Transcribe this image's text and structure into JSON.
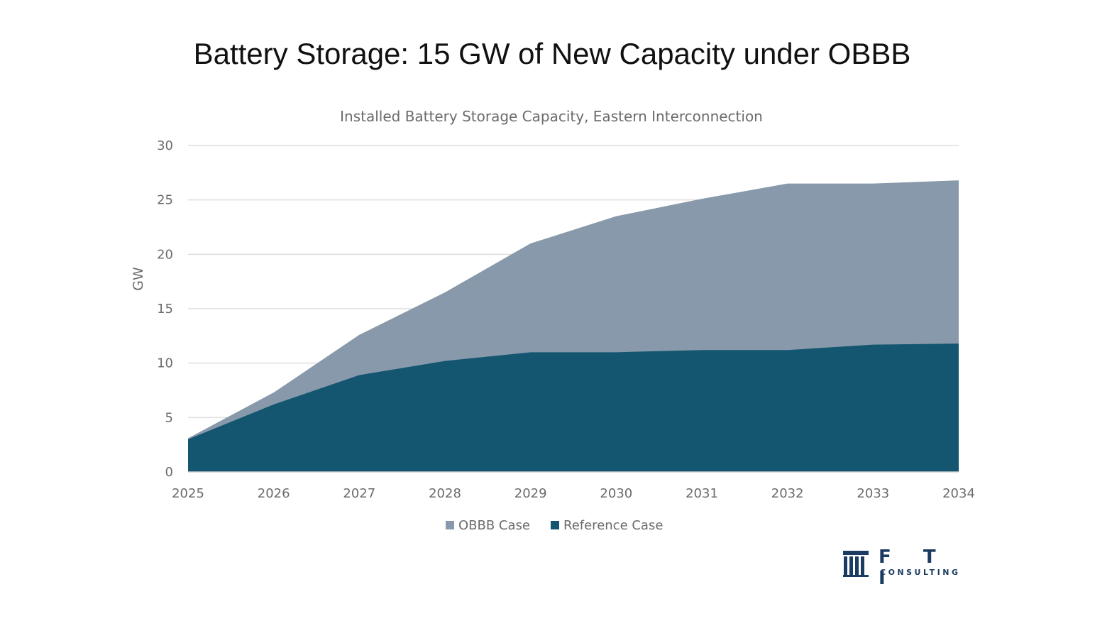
{
  "page_title": "Battery Storage: 15 GW of New Capacity under OBBB",
  "chart_data": {
    "type": "area",
    "stacked": false,
    "title": "Installed Battery Storage Capacity, Eastern Interconnection",
    "xlabel": "",
    "ylabel": "GW",
    "x": [
      "2025",
      "2026",
      "2027",
      "2028",
      "2029",
      "2030",
      "2031",
      "2032",
      "2033",
      "2034"
    ],
    "ylim": [
      0,
      30
    ],
    "yticks": [
      0,
      5,
      10,
      15,
      20,
      25,
      30
    ],
    "grid": true,
    "legend_position": "bottom",
    "series": [
      {
        "name": "OBBB Case",
        "color": "#8799aa",
        "values": [
          3.1,
          7.3,
          12.6,
          16.5,
          21.0,
          23.5,
          25.1,
          26.5,
          26.5,
          26.8
        ]
      },
      {
        "name": "Reference Case",
        "color": "#14556f",
        "values": [
          3.0,
          6.2,
          8.9,
          10.2,
          11.0,
          11.0,
          11.2,
          11.2,
          11.7,
          11.8
        ]
      }
    ]
  },
  "logo": {
    "name": "F T I",
    "sub": "CONSULTING",
    "color": "#1b3b63"
  }
}
